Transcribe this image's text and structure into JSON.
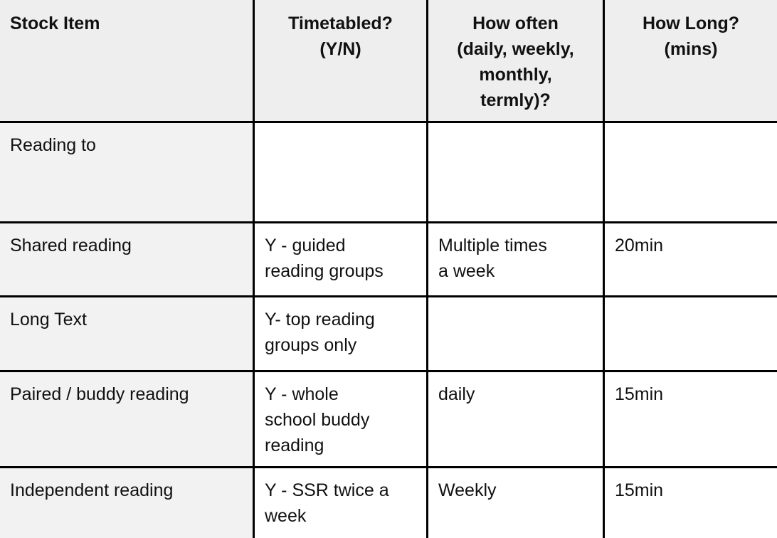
{
  "table": {
    "columns": [
      {
        "label": "Stock Item"
      },
      {
        "label": "Timetabled?\n(Y/N)"
      },
      {
        "label": "How often\n(daily, weekly,\nmonthly,\ntermly)?"
      },
      {
        "label": "How Long?\n(mins)"
      }
    ],
    "rows": [
      {
        "cells": [
          "Reading to",
          "",
          "",
          ""
        ]
      },
      {
        "cells": [
          "Shared reading",
          "Y - guided\nreading groups",
          "Multiple times\na week",
          "20min"
        ]
      },
      {
        "cells": [
          "Long Text",
          "Y- top reading\ngroups only",
          "",
          ""
        ]
      },
      {
        "cells": [
          "Paired / buddy reading",
          "Y - whole\nschool buddy\nreading",
          "daily",
          "15min"
        ]
      },
      {
        "cells": [
          "Independent reading",
          "Y - SSR twice a\nweek",
          "Weekly",
          "15min"
        ]
      }
    ]
  },
  "colors": {
    "header_background": "#eeeeee",
    "label_column_background": "#f2f2f2",
    "cell_background": "#ffffff",
    "border": "#000000",
    "text": "#111111"
  }
}
